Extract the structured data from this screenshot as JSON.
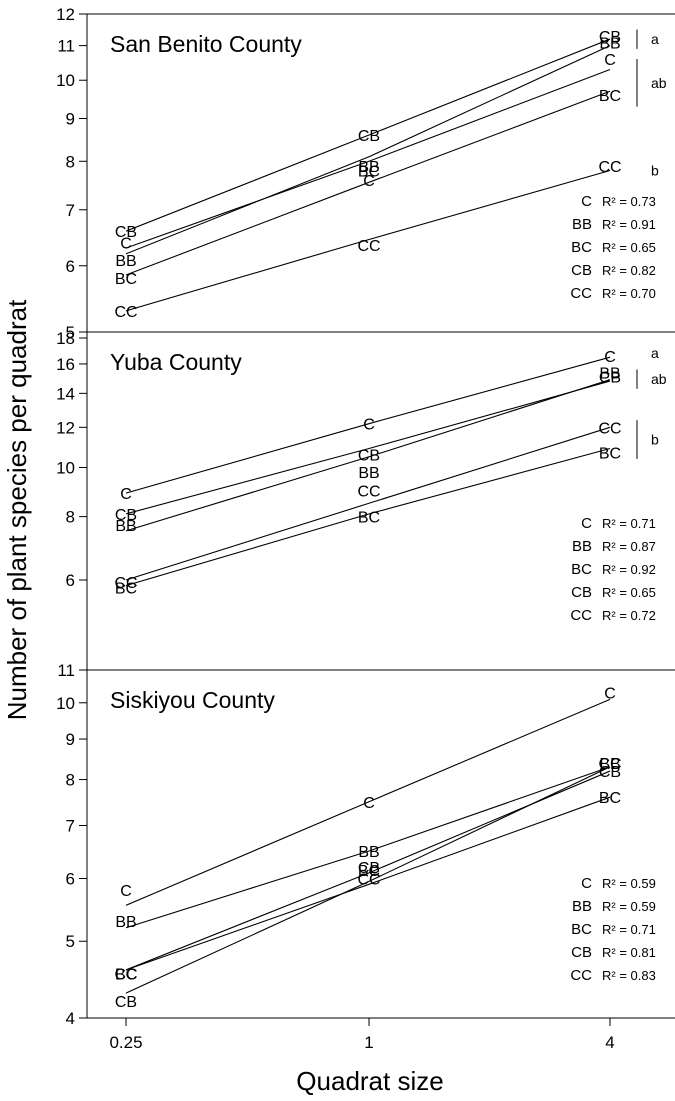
{
  "figure": {
    "ylabel": "Number of plant species per quadrat",
    "xlabel": "Quadrat size"
  },
  "chart_data": [
    {
      "type": "line",
      "title": "San Benito County",
      "x": [
        0.25,
        1,
        4
      ],
      "xscale": "log",
      "yscale": "log",
      "ylim": [
        5,
        12
      ],
      "yticks": [
        5,
        6,
        7,
        8,
        9,
        10,
        11,
        12
      ],
      "xticks": [
        0.25,
        1,
        4
      ],
      "xtick_labels": [
        "0.25",
        "1",
        "4"
      ],
      "series": [
        {
          "name": "CB",
          "values": [
            6.6,
            8.6,
            11.3
          ],
          "fit": [
            6.6,
            8.6,
            11.2
          ],
          "r2": "R² = 0.82"
        },
        {
          "name": "BB",
          "values": [
            6.1,
            7.9,
            11.1
          ],
          "fit": [
            6.2,
            8.1,
            11.0
          ],
          "r2": "R² = 0.91"
        },
        {
          "name": "C",
          "values": [
            6.4,
            7.6,
            10.6
          ],
          "fit": [
            6.3,
            8.0,
            10.3
          ],
          "r2": "R² = 0.73"
        },
        {
          "name": "BC",
          "values": [
            5.8,
            7.8,
            9.6
          ],
          "fit": [
            5.85,
            7.55,
            9.7
          ],
          "r2": "R² = 0.65"
        },
        {
          "name": "CC",
          "values": [
            5.3,
            6.35,
            7.9
          ],
          "fit": [
            5.3,
            6.45,
            7.8
          ],
          "r2": "R² = 0.70"
        }
      ],
      "legend_order": [
        "C",
        "BB",
        "BC",
        "CB",
        "CC"
      ],
      "groups": [
        {
          "label": "a",
          "from": 11.5,
          "to": 10.9
        },
        {
          "label": "ab",
          "from": 10.6,
          "to": 9.3
        },
        {
          "label": "b",
          "at": 7.8
        }
      ]
    },
    {
      "type": "line",
      "title": "Yuba County",
      "x": [
        0.25,
        1,
        4
      ],
      "xscale": "log",
      "yscale": "log",
      "ylim": [
        5,
        18
      ],
      "yticks": [
        6,
        8,
        10,
        12,
        14,
        16,
        18
      ],
      "xticks": [
        0.25,
        1,
        4
      ],
      "xtick_labels": [
        "0.25",
        "1",
        "4"
      ],
      "series": [
        {
          "name": "C",
          "values": [
            8.9,
            12.2,
            16.6
          ],
          "fit": [
            8.9,
            12.2,
            16.5
          ],
          "r2": "R² = 0.71"
        },
        {
          "name": "CB",
          "values": [
            8.1,
            10.6,
            15.1
          ],
          "fit": [
            8.1,
            10.9,
            14.8
          ],
          "r2": "R² = 0.65"
        },
        {
          "name": "BB",
          "values": [
            7.7,
            9.8,
            15.4
          ],
          "fit": [
            7.5,
            10.5,
            14.9
          ],
          "r2": "R² = 0.87"
        },
        {
          "name": "CC",
          "values": [
            5.95,
            9.0,
            12.0
          ],
          "fit": [
            6.0,
            8.5,
            12.0
          ],
          "r2": "R² = 0.72"
        },
        {
          "name": "BC",
          "values": [
            5.8,
            8.0,
            10.7
          ],
          "fit": [
            5.85,
            8.1,
            10.9
          ],
          "r2": "R² = 0.92"
        }
      ],
      "legend_order": [
        "C",
        "BB",
        "BC",
        "CB",
        "CC"
      ],
      "groups": [
        {
          "label": "a",
          "at": 16.8
        },
        {
          "label": "ab",
          "from": 15.6,
          "to": 14.3
        },
        {
          "label": "b",
          "from": 12.4,
          "to": 10.4
        }
      ]
    },
    {
      "type": "line",
      "title": "Siskiyou County",
      "x": [
        0.25,
        1,
        4
      ],
      "xscale": "log",
      "yscale": "log",
      "ylim": [
        4,
        11
      ],
      "yticks": [
        4,
        5,
        6,
        7,
        8,
        9,
        10,
        11
      ],
      "xticks": [
        0.25,
        1,
        4
      ],
      "xtick_labels": [
        "0.25",
        "1",
        "4"
      ],
      "series": [
        {
          "name": "C",
          "values": [
            5.8,
            7.5,
            10.3
          ],
          "fit": [
            5.55,
            7.5,
            10.1
          ],
          "r2": "R² = 0.59"
        },
        {
          "name": "BB",
          "values": [
            5.3,
            6.5,
            8.4
          ],
          "fit": [
            5.2,
            6.5,
            8.3
          ],
          "r2": "R² = 0.59"
        },
        {
          "name": "CB",
          "values": [
            4.2,
            6.2,
            8.2
          ],
          "fit": [
            4.3,
            5.95,
            8.3
          ],
          "r2": "R² = 0.81"
        },
        {
          "name": "CC",
          "values": [
            4.55,
            6.0,
            8.4
          ],
          "fit": [
            4.6,
            6.1,
            8.2
          ],
          "r2": "R² = 0.83"
        },
        {
          "name": "BC",
          "values": [
            4.55,
            6.15,
            7.6
          ],
          "fit": [
            4.6,
            5.9,
            7.6
          ],
          "r2": "R² = 0.71"
        }
      ],
      "legend_order": [
        "C",
        "BB",
        "BC",
        "CB",
        "CC"
      ],
      "groups": []
    }
  ]
}
